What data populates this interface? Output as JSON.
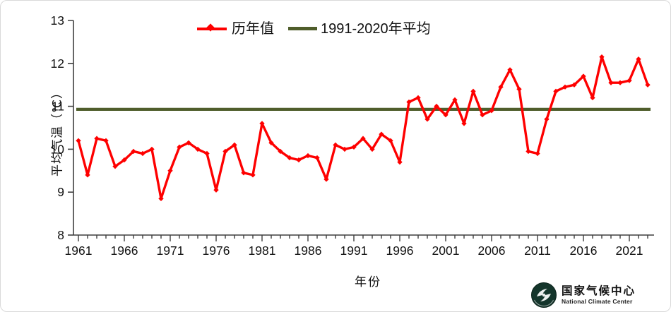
{
  "chart_data": {
    "type": "line",
    "title": "",
    "xlabel": "年份",
    "ylabel": "平均气温（℃）",
    "ylim": [
      8,
      13
    ],
    "ytick_step": 1,
    "x_range": [
      1961,
      2023
    ],
    "xticks_labeled": [
      1961,
      1966,
      1971,
      1976,
      1981,
      1986,
      1991,
      1996,
      2001,
      2006,
      2011,
      2016,
      2021
    ],
    "grid": false,
    "legend_position": "top-center",
    "x": [
      1961,
      1962,
      1963,
      1964,
      1965,
      1966,
      1967,
      1968,
      1969,
      1970,
      1971,
      1972,
      1973,
      1974,
      1975,
      1976,
      1977,
      1978,
      1979,
      1980,
      1981,
      1982,
      1983,
      1984,
      1985,
      1986,
      1987,
      1988,
      1989,
      1990,
      1991,
      1992,
      1993,
      1994,
      1995,
      1996,
      1997,
      1998,
      1999,
      2000,
      2001,
      2002,
      2003,
      2004,
      2005,
      2006,
      2007,
      2008,
      2009,
      2010,
      2011,
      2012,
      2013,
      2014,
      2015,
      2016,
      2017,
      2018,
      2019,
      2020,
      2021,
      2022,
      2023
    ],
    "series": [
      {
        "name": "历年值",
        "color": "#fe0000",
        "marker": "diamond",
        "values": [
          10.2,
          9.4,
          10.25,
          10.2,
          9.6,
          9.75,
          9.95,
          9.9,
          10.0,
          8.85,
          9.5,
          10.05,
          10.15,
          10.0,
          9.9,
          9.05,
          9.95,
          10.1,
          9.45,
          9.4,
          10.6,
          10.15,
          9.95,
          9.8,
          9.75,
          9.85,
          9.8,
          9.3,
          10.1,
          10.0,
          10.05,
          10.25,
          10.0,
          10.35,
          10.2,
          9.7,
          11.1,
          11.2,
          10.7,
          11.0,
          10.8,
          11.15,
          10.6,
          11.35,
          10.8,
          10.9,
          11.45,
          11.85,
          11.4,
          9.95,
          9.9,
          10.7,
          11.35,
          11.45,
          11.5,
          11.7,
          11.2,
          12.15,
          11.55,
          11.55,
          11.6,
          12.1,
          11.5
        ]
      },
      {
        "name": "1991-2020年平均",
        "color": "#4f5d2b",
        "type": "horizontal-mean-line",
        "mean_value": 10.93
      }
    ],
    "axis_color": "#3f3f3f",
    "tick_label_color": "#111111"
  },
  "footer": {
    "org_cn": "国家气候中心",
    "org_en": "National Climate Center",
    "logo": "ncc-emblem"
  }
}
